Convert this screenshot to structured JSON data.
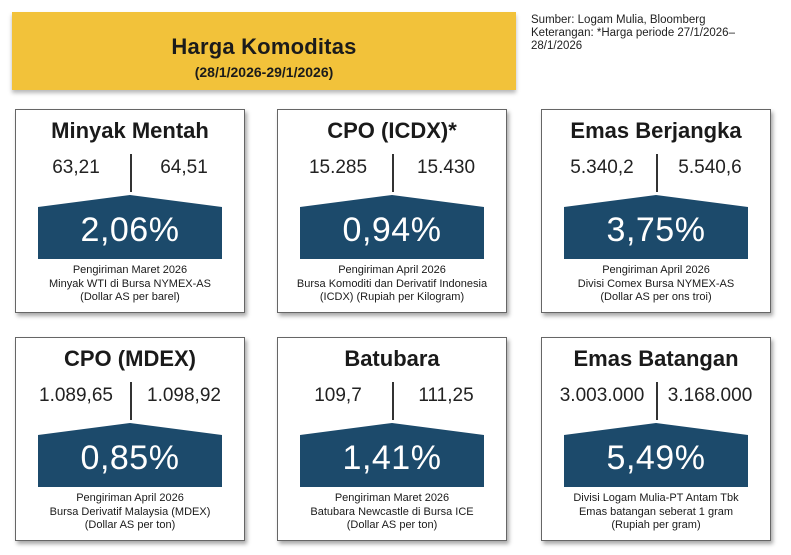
{
  "header": {
    "title": "Harga Komoditas",
    "period": "(28/1/2026-29/1/2026)"
  },
  "source": {
    "line1": "Sumber: Logam Mulia, Bloomberg",
    "line2": "Keterangan: *Harga periode 27/1/2026–",
    "line3": "28/1/2026"
  },
  "colors": {
    "banner": "#f2c23a",
    "badge": "#1c4a6b"
  },
  "cards": [
    {
      "title": "Minyak Mentah",
      "value_before": "63,21",
      "value_after": "64,51",
      "change": "2,06%",
      "notes": [
        "Pengiriman Maret 2026",
        "Minyak WTI di Bursa NYMEX-AS",
        "(Dollar AS per barel)"
      ]
    },
    {
      "title": "CPO (ICDX)*",
      "value_before": "15.285",
      "value_after": "15.430",
      "change": "0,94%",
      "notes": [
        "Pengiriman April 2026",
        "Bursa Komoditi dan Derivatif Indonesia",
        "(ICDX) (Rupiah per Kilogram)"
      ]
    },
    {
      "title": "Emas Berjangka",
      "value_before": "5.340,2",
      "value_after": "5.540,6",
      "change": "3,75%",
      "notes": [
        "Pengiriman April 2026",
        "Divisi Comex Bursa NYMEX-AS",
        "(Dollar AS per ons troi)"
      ]
    },
    {
      "title": "CPO (MDEX)",
      "value_before": "1.089,65",
      "value_after": "1.098,92",
      "change": "0,85%",
      "notes": [
        "Pengiriman April 2026",
        "Bursa Derivatif Malaysia (MDEX)",
        "(Dollar AS per ton)"
      ]
    },
    {
      "title": "Batubara",
      "value_before": "109,7",
      "value_after": "111,25",
      "change": "1,41%",
      "notes": [
        "Pengiriman Maret 2026",
        "Batubara Newcastle di Bursa ICE",
        "(Dollar AS per ton)"
      ]
    },
    {
      "title": "Emas Batangan",
      "value_before": "3.003.000",
      "value_after": "3.168.000",
      "change": "5,49%",
      "notes": [
        "Divisi Logam Mulia-PT Antam Tbk",
        "Emas batangan seberat 1 gram",
        "(Rupiah per gram)"
      ]
    }
  ]
}
